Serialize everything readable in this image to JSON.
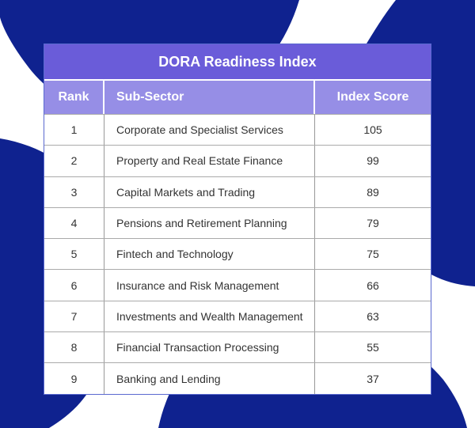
{
  "chart_data": {
    "type": "table",
    "title": "DORA Readiness Index",
    "columns": [
      "Rank",
      "Sub-Sector",
      "Index Score"
    ],
    "rows": [
      [
        "1",
        "Corporate and Specialist Services",
        "105"
      ],
      [
        "2",
        "Property and Real Estate Finance",
        "99"
      ],
      [
        "3",
        "Capital Markets and Trading",
        "89"
      ],
      [
        "4",
        "Pensions and Retirement Planning",
        "79"
      ],
      [
        "5",
        "Fintech and Technology",
        "75"
      ],
      [
        "6",
        "Insurance and Risk Management",
        "66"
      ],
      [
        "7",
        "Investments and Wealth Management",
        "63"
      ],
      [
        "8",
        "Financial Transaction Processing",
        "55"
      ],
      [
        "9",
        "Banking and Lending",
        "37"
      ]
    ]
  },
  "colors": {
    "background_shapes": "#0f228f",
    "title_bar": "#6a5cd9",
    "header_row": "#968ee6"
  }
}
